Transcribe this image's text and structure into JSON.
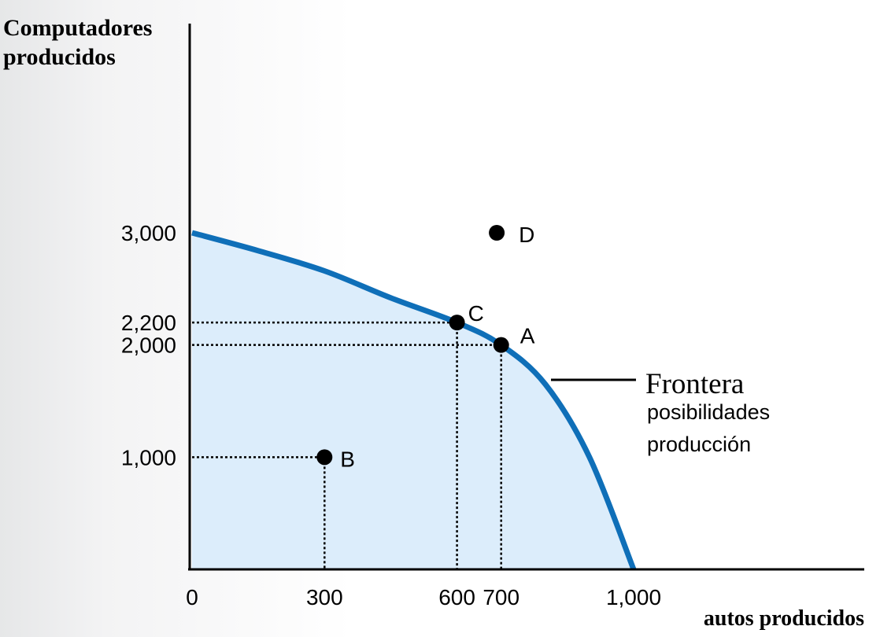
{
  "chart_data": {
    "type": "line",
    "ylabel_line1": "Computadores",
    "ylabel_line2": "producidos",
    "xlabel": "autos producidos",
    "xlim": [
      0,
      1000
    ],
    "ylim": [
      0,
      3000
    ],
    "x_ticks": [
      {
        "value": 0,
        "label": "0"
      },
      {
        "value": 300,
        "label": "300"
      },
      {
        "value": 600,
        "label": "600"
      },
      {
        "value": 700,
        "label": "700"
      },
      {
        "value": 1000,
        "label": "1,000"
      }
    ],
    "y_ticks": [
      {
        "value": 1000,
        "label": "1,000"
      },
      {
        "value": 2000,
        "label": "2,000"
      },
      {
        "value": 2200,
        "label": "2,200"
      },
      {
        "value": 3000,
        "label": "3,000"
      }
    ],
    "frontier": {
      "label_line1": "Frontera",
      "label_line2": "posibilidades",
      "label_line3": "producción",
      "color": "#0f6fb8",
      "fill_color": "#dcedfb",
      "points": [
        [
          0,
          3000
        ],
        [
          150,
          2840
        ],
        [
          300,
          2660
        ],
        [
          450,
          2420
        ],
        [
          600,
          2200
        ],
        [
          700,
          2000
        ],
        [
          800,
          1650
        ],
        [
          900,
          1000
        ],
        [
          1000,
          0
        ]
      ]
    },
    "points": [
      {
        "name": "A",
        "x": 700,
        "y": 2000,
        "guides": true
      },
      {
        "name": "B",
        "x": 300,
        "y": 1000,
        "guides": true
      },
      {
        "name": "C",
        "x": 600,
        "y": 2200,
        "guides": true
      },
      {
        "name": "D",
        "x": 690,
        "y": 3000,
        "guides": false
      }
    ]
  }
}
